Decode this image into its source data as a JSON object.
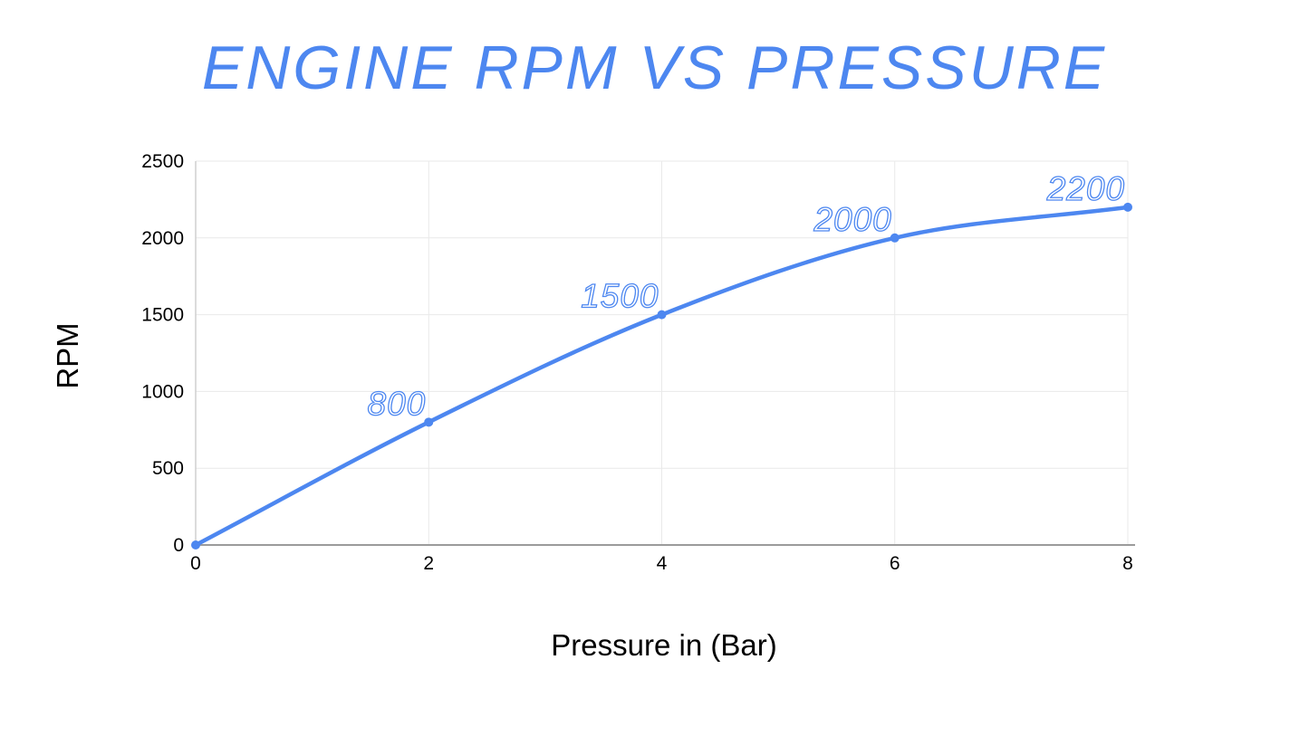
{
  "chart_data": {
    "type": "line",
    "title": "ENGINE RPM VS PRESSURE",
    "xlabel": "Pressure in (Bar)",
    "ylabel": "RPM",
    "x": [
      0,
      2,
      4,
      6,
      8
    ],
    "series": [
      {
        "name": "RPM",
        "values": [
          0,
          800,
          1500,
          2000,
          2200
        ]
      }
    ],
    "point_labels": [
      "",
      "800",
      "1500",
      "2000",
      "2200"
    ],
    "xlim": [
      0,
      8
    ],
    "ylim": [
      0,
      2500
    ],
    "x_ticks": [
      0,
      2,
      4,
      6,
      8
    ],
    "y_ticks": [
      0,
      500,
      1000,
      1500,
      2000,
      2500
    ],
    "grid": true,
    "legend": false,
    "smooth": true,
    "marker": "circle",
    "data_label_style": "outline-italic",
    "colors": {
      "line": "#4d87f0",
      "title": "#4d87f0",
      "grid": "#e9e9e9",
      "y_axis_line": "#cfcfcf",
      "x_axis_line": "#9b9b9b",
      "tick_text": "#000000",
      "axis_title_text": "#000000",
      "background": "#ffffff"
    }
  }
}
